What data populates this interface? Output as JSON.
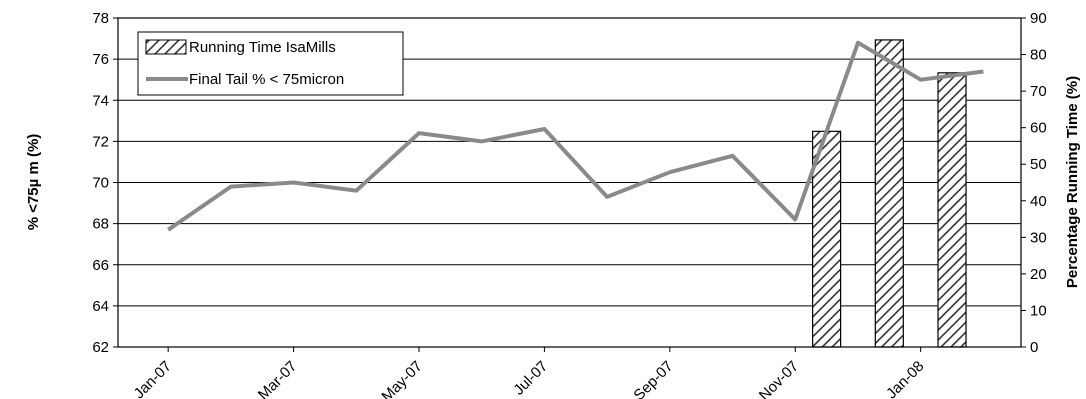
{
  "chart_data": {
    "type": "bar",
    "x_tick_labels": [
      "Jan-07",
      "Mar-07",
      "May-07",
      "Jul-07",
      "Sep-07",
      "Nov-07",
      "Jan-08"
    ],
    "ylabel_left": "% <75µ m (%)",
    "ylabel_right": "Percentage Running Time (%)",
    "ylim_left": [
      62,
      78
    ],
    "ylim_right": [
      0,
      90
    ],
    "yticks_left": [
      62,
      64,
      66,
      68,
      70,
      72,
      74,
      76,
      78
    ],
    "yticks_right": [
      0,
      10,
      20,
      30,
      40,
      50,
      60,
      70,
      80,
      90
    ],
    "grid": true,
    "legend_position": "top-left",
    "series": [
      {
        "name": "Running Time IsaMills",
        "kind": "bar",
        "axis": "right",
        "pattern": "diagonal-hatch",
        "x": [
          "Dec-07 (early)",
          "Jan-08 (early)",
          "Jan-08 (late)"
        ],
        "x_month_index": [
          10.5,
          11.5,
          12.5
        ],
        "values": [
          59,
          84,
          75
        ]
      },
      {
        "name": "Final Tail % < 75micron",
        "kind": "line",
        "axis": "left",
        "color": "#8a8a8a",
        "x_month_index": [
          0,
          1,
          2,
          3,
          4,
          5,
          6,
          7,
          8,
          9,
          10,
          11,
          12,
          13
        ],
        "values": [
          67.7,
          69.8,
          70.0,
          69.6,
          72.4,
          72.0,
          72.6,
          69.3,
          70.5,
          71.3,
          68.2,
          76.8,
          75.0,
          75.4
        ]
      }
    ]
  }
}
